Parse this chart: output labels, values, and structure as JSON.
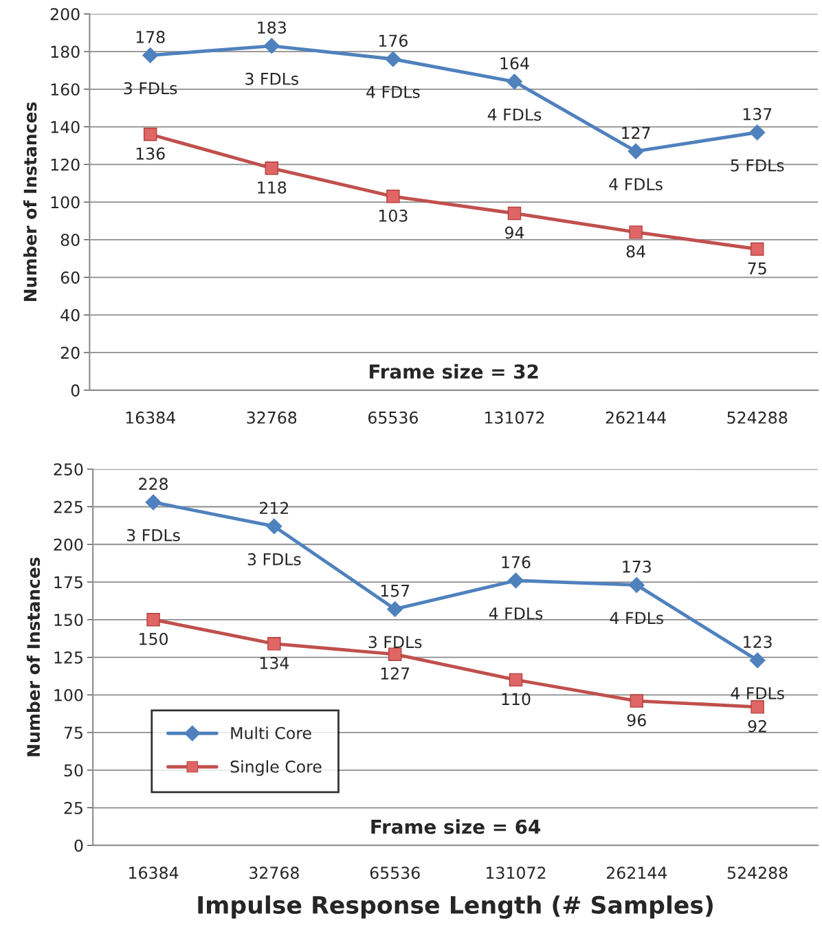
{
  "chart_data": [
    {
      "type": "line",
      "ylabel": "Number of Instances",
      "categories": [
        "16384",
        "32768",
        "65536",
        "131072",
        "262144",
        "524288"
      ],
      "series": [
        {
          "color": "#4f81bd",
          "marker": "diamond",
          "values": [
            178,
            183,
            176,
            164,
            127,
            137
          ]
        },
        {
          "color": "#c0504d",
          "marker": "square",
          "values": [
            136,
            118,
            103,
            94,
            84,
            75
          ]
        }
      ],
      "ylim": [
        0,
        200
      ],
      "yticks": [
        0,
        20,
        40,
        60,
        80,
        100,
        120,
        140,
        160,
        180,
        200
      ],
      "grid": "y",
      "data_labels": true,
      "annotations": [
        "Frame size = 32",
        {
          "text": "3 FDLs",
          "x": "16384",
          "y": 178
        },
        {
          "text": "3 FDLs",
          "x": "32768",
          "y": 183
        },
        {
          "text": "4 FDLs",
          "x": "65536",
          "y": 176
        },
        {
          "text": "4 FDLs",
          "x": "131072",
          "y": 164
        },
        {
          "text": "4 FDLs",
          "x": "262144",
          "y": 127
        },
        {
          "text": "5 FDLs",
          "x": "524288",
          "y": 137
        }
      ]
    },
    {
      "type": "line",
      "ylabel": "Number of Instances",
      "xlabel": "Impulse Response Length (# Samples)",
      "categories": [
        "16384",
        "32768",
        "65536",
        "131072",
        "262144",
        "524288"
      ],
      "series": [
        {
          "name": "Multi Core",
          "color": "#4f81bd",
          "marker": "diamond",
          "values": [
            228,
            212,
            157,
            176,
            173,
            123
          ]
        },
        {
          "name": "Single Core",
          "color": "#c0504d",
          "marker": "square",
          "values": [
            150,
            134,
            127,
            110,
            96,
            92
          ]
        }
      ],
      "ylim": [
        0,
        250
      ],
      "yticks": [
        0,
        25,
        50,
        75,
        100,
        125,
        150,
        175,
        200,
        225,
        250
      ],
      "grid": "y",
      "data_labels": true,
      "legend": "bottom left",
      "annotations": [
        "Frame size = 64",
        {
          "text": "3 FDLs",
          "x": "16384",
          "y": 228
        },
        {
          "text": "3 FDLs",
          "x": "32768",
          "y": 212
        },
        {
          "text": "3 FDLs",
          "x": "65536",
          "y": 157
        },
        {
          "text": "4 FDLs",
          "x": "131072",
          "y": 176
        },
        {
          "text": "4 FDLs",
          "x": "262144",
          "y": 173
        },
        {
          "text": "4 FDLs",
          "x": "524288",
          "y": 123
        }
      ]
    }
  ]
}
